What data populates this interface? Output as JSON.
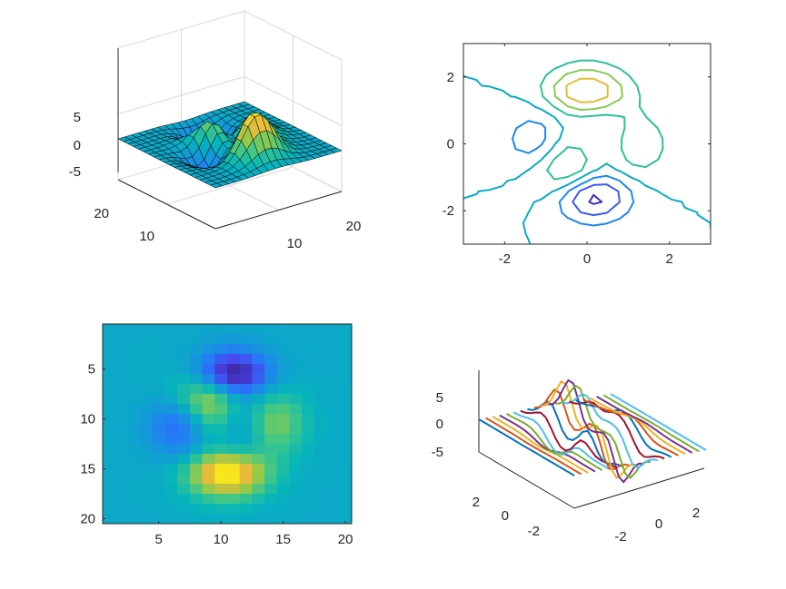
{
  "figure": {
    "background": "#ffffff",
    "colormap": "parula"
  },
  "chart_data": [
    {
      "id": "surf",
      "type": "surface",
      "grid": "20x20",
      "zlim": [
        -8,
        8
      ],
      "ztick_labels": [
        "5",
        "0",
        "-5"
      ],
      "xtick_labels": [
        "10",
        "20"
      ],
      "ytick_labels": [
        "10",
        "20"
      ],
      "grid_on": true,
      "peak_max": 8.1,
      "peak_min": -6.5
    },
    {
      "id": "contour",
      "type": "contour",
      "xlim": [
        -3,
        3
      ],
      "ylim": [
        -3,
        3
      ],
      "xtick_labels": [
        "-2",
        "0",
        "2"
      ],
      "ytick_labels": [
        "2",
        "0",
        "-2"
      ],
      "levels": [
        -6,
        -4,
        -2,
        0,
        2,
        4,
        6,
        8
      ]
    },
    {
      "id": "image",
      "type": "heatmap",
      "xlim": [
        0.5,
        20.5
      ],
      "ylim": [
        0.5,
        20.5
      ],
      "xtick_labels": [
        "5",
        "10",
        "15",
        "20"
      ],
      "ytick_labels": [
        "5",
        "10",
        "15",
        "20"
      ],
      "y_direction": "reverse"
    },
    {
      "id": "waterfall",
      "type": "line3d",
      "zlim": [
        -8,
        8
      ],
      "ztick_labels": [
        "5",
        "0",
        "-5"
      ],
      "xtick_labels": [
        "-2",
        "0",
        "2"
      ],
      "ytick_labels": [
        "2",
        "0",
        "-2"
      ],
      "series_colors": [
        "#0072BD",
        "#D95319",
        "#EDB120",
        "#7E2F8E",
        "#77AC30",
        "#4DBEEE",
        "#A2142F"
      ]
    }
  ]
}
